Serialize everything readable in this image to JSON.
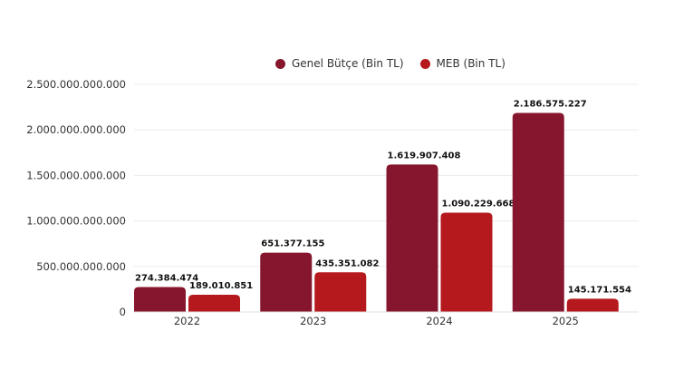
{
  "chart_data": {
    "type": "bar",
    "title": "",
    "xlabel": "",
    "ylabel": "",
    "categories": [
      "2022",
      "2023",
      "2024",
      "2025"
    ],
    "series": [
      {
        "name": "Genel Bütçe (Bin TL)",
        "color": "#86162d",
        "values": [
          274384474000,
          651377155000,
          1619907408000,
          2186575227000
        ],
        "labels": [
          "274.384.474",
          "651.377.155",
          "1.619.907.408",
          "2.186.575.227"
        ]
      },
      {
        "name": "MEB (Bin TL)",
        "color": "#b5191d",
        "values": [
          189010851000,
          435351082000,
          1090229668000,
          145171554000
        ],
        "labels": [
          "189.010.851",
          "435.351.082",
          "1.090.229.668",
          "145.171.554"
        ]
      }
    ],
    "ylim": [
      0,
      2500000000000
    ],
    "yticks": [
      0,
      500000000000,
      1000000000000,
      1500000000000,
      2000000000000,
      2500000000000
    ],
    "ytick_labels": [
      "0",
      "500.000.000.000",
      "1.000.000.000.000",
      "1.500.000.000.000",
      "2.000.000.000.000",
      "2.500.000.000.000"
    ],
    "grid": true,
    "legend_position": "top-center"
  }
}
